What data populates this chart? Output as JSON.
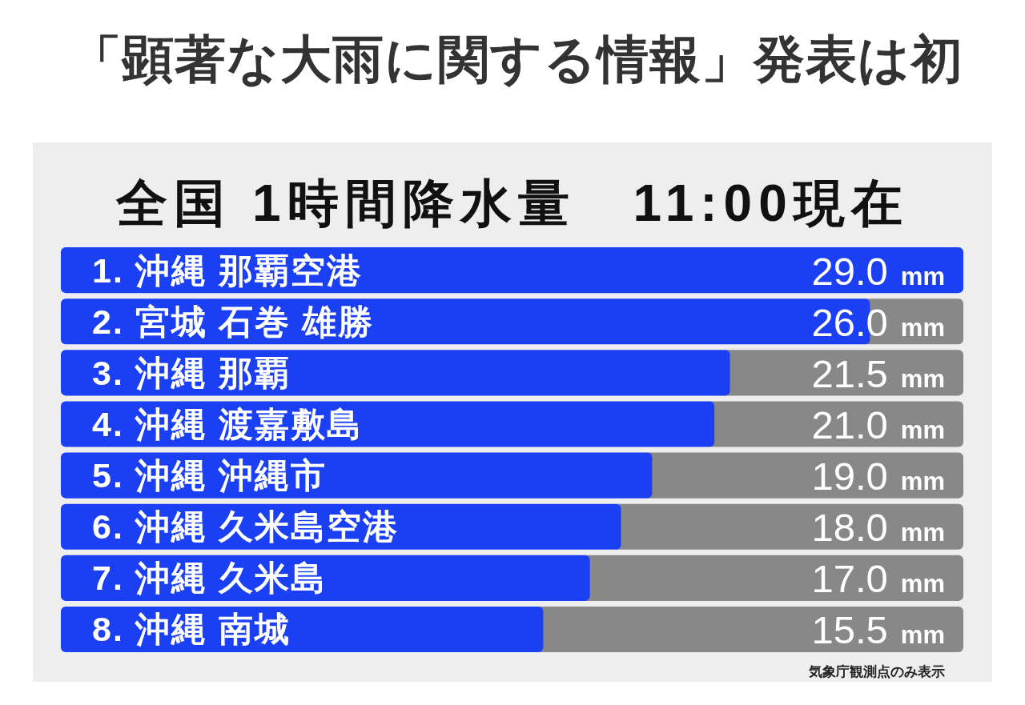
{
  "chart_data": {
    "type": "bar",
    "orientation": "horizontal",
    "title": "「顕著な大雨に関する情報」発表は初",
    "subtitle": "全国 1時間降水量　11:00現在",
    "categories": [
      "1. 沖縄 那覇空港",
      "2. 宮城 石巻 雄勝",
      "3. 沖縄 那覇",
      "4. 沖縄 渡嘉敷島",
      "5. 沖縄 沖縄市",
      "6. 沖縄 久米島空港",
      "7. 沖縄 久米島",
      "8. 沖縄 南城"
    ],
    "values": [
      29.0,
      26.0,
      21.5,
      21.0,
      19.0,
      18.0,
      17.0,
      15.5
    ],
    "color": "#1b3ff2",
    "value_labels": [
      "29.0 mm",
      "26.0 mm",
      "21.5 mm",
      "21.0 mm",
      "19.0 mm",
      "18.0 mm",
      "17.0 mm",
      "15.5 mm"
    ],
    "annotations": [
      "気象庁観測点のみ表示"
    ]
  }
}
